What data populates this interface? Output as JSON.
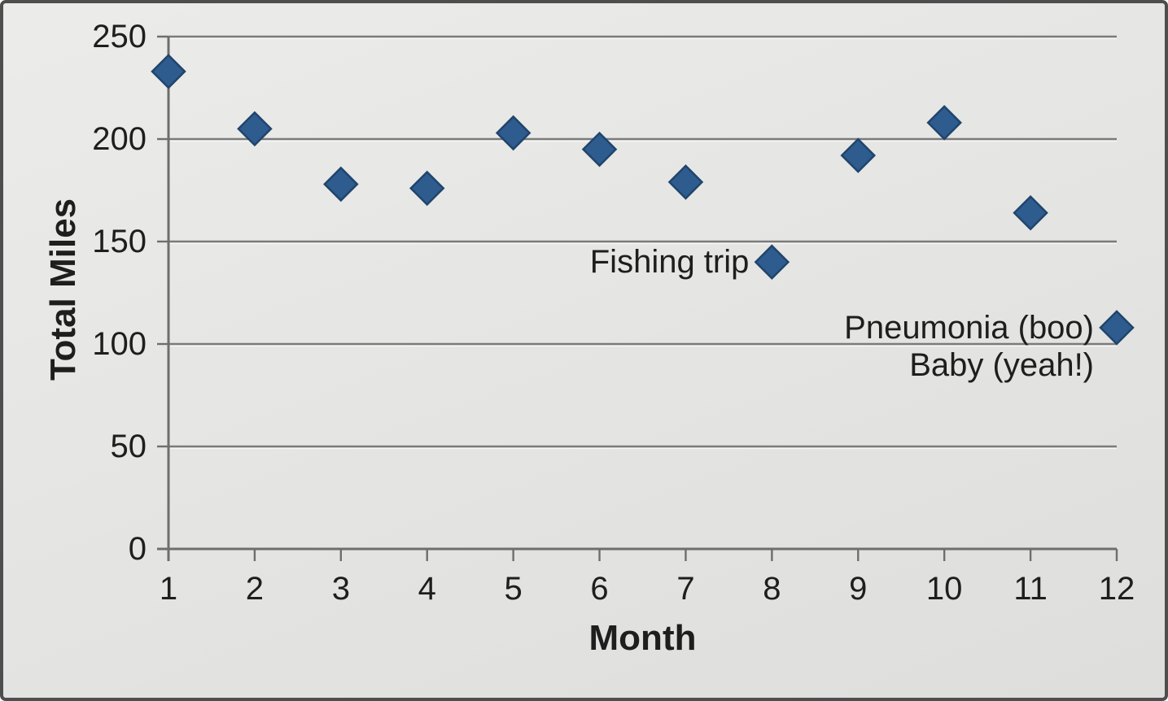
{
  "chart_data": {
    "type": "scatter",
    "title": "",
    "xlabel": "Month",
    "ylabel": "Total Miles",
    "x": [
      1,
      2,
      3,
      4,
      5,
      6,
      7,
      8,
      9,
      10,
      11,
      12
    ],
    "values": [
      233,
      205,
      178,
      176,
      203,
      195,
      179,
      140,
      192,
      208,
      164,
      108
    ],
    "xlim": [
      1,
      12
    ],
    "ylim": [
      0,
      250
    ],
    "x_ticks": [
      1,
      2,
      3,
      4,
      5,
      6,
      7,
      8,
      9,
      10,
      11,
      12
    ],
    "y_ticks": [
      0,
      50,
      100,
      150,
      200,
      250
    ],
    "grid": "horizontal",
    "legend": "none",
    "marker": {
      "shape": "diamond",
      "size": 40
    },
    "annotations": [
      {
        "lines": [
          "Fishing trip"
        ],
        "month": 8,
        "value": 140
      },
      {
        "lines": [
          "Pneumonia (boo)",
          "Baby (yeah!)"
        ],
        "month": 12,
        "value": 108
      }
    ]
  },
  "colors": {
    "background": "#e5e5e3",
    "frame_border": "#4e4e4e",
    "gridline": "#7b7b7b",
    "gridline_highlight": "#fafafa",
    "axis": "#6e6e6e",
    "text": "#1e1e1e",
    "marker_fill": "#2e5c8f",
    "marker_stroke": "#20456b"
  }
}
